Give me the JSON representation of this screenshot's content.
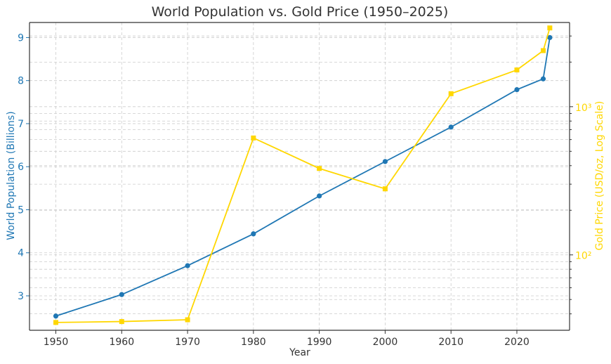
{
  "chart_data": {
    "type": "line",
    "title": "World Population vs. Gold Price (1950–2025)",
    "xlabel": "Year",
    "xlim": [
      1946,
      2028
    ],
    "x_ticks": [
      "1950",
      "1960",
      "1970",
      "1980",
      "1990",
      "2000",
      "2010",
      "2020"
    ],
    "grid": true,
    "left_axis": {
      "label": "World Population (Billions)",
      "color": "#1f77b4",
      "ylim": [
        2.2,
        9.35
      ],
      "ticks": [
        "3",
        "4",
        "5",
        "6",
        "7",
        "8",
        "9"
      ]
    },
    "right_axis": {
      "label": "Gold Price (USD/oz, Log Scale)",
      "color": "#ffd700",
      "scale": "log",
      "ylim": [
        31,
        3700
      ],
      "ticks": [
        "10²",
        "10³"
      ]
    },
    "series": [
      {
        "axis": "left",
        "color": "#1f77b4",
        "marker": "circle",
        "x": [
          1950,
          1960,
          1970,
          1980,
          1990,
          2000,
          2010,
          2020,
          2024,
          2025
        ],
        "values": [
          2.53,
          3.03,
          3.7,
          4.44,
          5.32,
          6.12,
          6.92,
          7.79,
          8.04,
          9.0
        ]
      },
      {
        "axis": "right",
        "color": "#ffd700",
        "marker": "square",
        "x": [
          1950,
          1960,
          1970,
          1980,
          1990,
          2000,
          2010,
          2020,
          2024,
          2025
        ],
        "values": [
          35,
          35.5,
          36.5,
          615,
          383,
          279,
          1224,
          1770,
          2390,
          3400
        ]
      }
    ]
  }
}
